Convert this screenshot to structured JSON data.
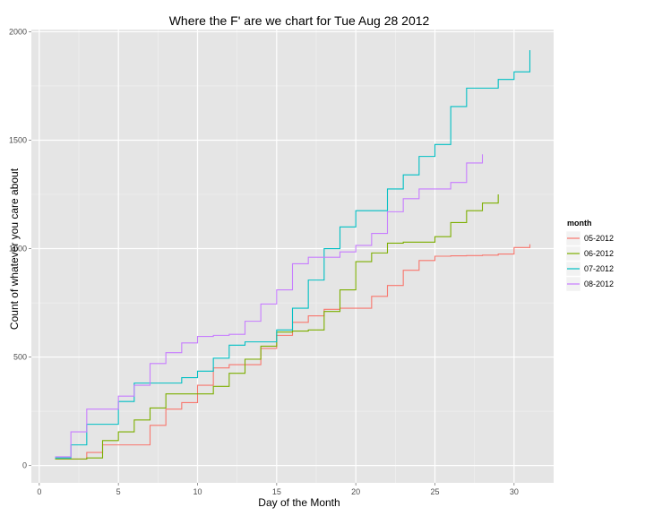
{
  "chart_data": {
    "type": "line",
    "step": true,
    "title": "Where the F' are we chart for Tue Aug 28 2012",
    "xlabel": "Day of the Month",
    "ylabel": "Count of whatever you care about",
    "xlim": [
      -0.5,
      32.5
    ],
    "ylim": [
      -80,
      2010
    ],
    "x_ticks": [
      0,
      5,
      10,
      15,
      20,
      25,
      30
    ],
    "y_ticks": [
      0,
      500,
      1000,
      1500,
      2000
    ],
    "grid": true,
    "panel_background": "#e5e5e5",
    "legend": {
      "title": "month",
      "placement": "right"
    },
    "series": [
      {
        "name": "05-2012",
        "color": "#F8766D",
        "x": [
          1,
          2,
          3,
          4,
          5,
          6,
          7,
          8,
          9,
          10,
          11,
          12,
          13,
          14,
          15,
          16,
          17,
          18,
          19,
          20,
          21,
          22,
          23,
          24,
          25,
          26,
          27,
          28,
          29,
          30,
          31
        ],
        "values": [
          30,
          30,
          60,
          95,
          95,
          95,
          185,
          260,
          290,
          370,
          450,
          465,
          465,
          540,
          600,
          660,
          690,
          720,
          725,
          725,
          780,
          830,
          900,
          945,
          965,
          967,
          968,
          970,
          975,
          1005,
          1020
        ]
      },
      {
        "name": "06-2012",
        "color": "#7CAE00",
        "x": [
          1,
          2,
          3,
          4,
          5,
          6,
          7,
          8,
          9,
          10,
          11,
          12,
          13,
          14,
          15,
          16,
          17,
          18,
          19,
          20,
          21,
          22,
          23,
          24,
          25,
          26,
          27,
          28,
          29
        ],
        "values": [
          30,
          30,
          35,
          115,
          155,
          210,
          265,
          330,
          330,
          330,
          365,
          425,
          490,
          550,
          615,
          620,
          625,
          710,
          810,
          940,
          980,
          1025,
          1030,
          1030,
          1055,
          1120,
          1175,
          1210,
          1250
        ]
      },
      {
        "name": "07-2012",
        "color": "#00BFC4",
        "x": [
          1,
          2,
          3,
          4,
          5,
          6,
          7,
          8,
          9,
          10,
          11,
          12,
          13,
          14,
          15,
          16,
          17,
          18,
          19,
          20,
          21,
          22,
          23,
          24,
          25,
          26,
          27,
          28,
          29,
          30,
          31
        ],
        "values": [
          35,
          95,
          190,
          190,
          295,
          380,
          380,
          380,
          405,
          435,
          495,
          555,
          570,
          570,
          625,
          725,
          855,
          1000,
          1100,
          1175,
          1175,
          1275,
          1340,
          1425,
          1480,
          1655,
          1740,
          1740,
          1780,
          1815,
          1915
        ]
      },
      {
        "name": "08-2012",
        "color": "#C77CFF",
        "x": [
          1,
          2,
          3,
          4,
          5,
          6,
          7,
          8,
          9,
          10,
          11,
          12,
          13,
          14,
          15,
          16,
          17,
          18,
          19,
          20,
          21,
          22,
          23,
          24,
          25,
          26,
          27,
          28
        ],
        "values": [
          40,
          155,
          260,
          260,
          320,
          370,
          470,
          520,
          565,
          595,
          600,
          605,
          665,
          745,
          810,
          930,
          960,
          960,
          985,
          1015,
          1070,
          1170,
          1230,
          1275,
          1275,
          1305,
          1395,
          1435
        ]
      }
    ]
  }
}
